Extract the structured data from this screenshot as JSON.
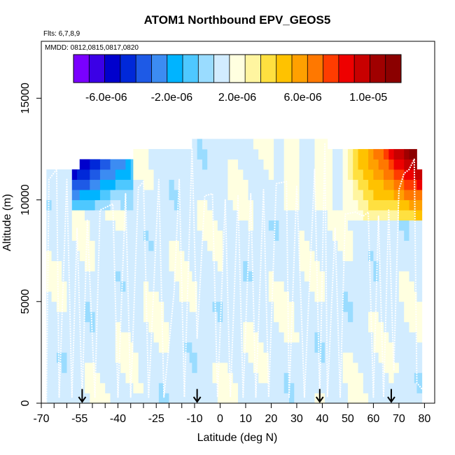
{
  "chart_data": {
    "type": "heatmap",
    "title": "ATOM1 Northbound EPV_GEOS5",
    "subtitle_flights": "Flts: 6,7,8,9",
    "subtitle_dates": "MMDD: 0812,0815,0817,0820",
    "xlabel": "Latitude (deg N)",
    "ylabel": "Altitude (m)",
    "xlim": [
      -70,
      84
    ],
    "ylim": [
      0,
      17800
    ],
    "xticks": [
      -70,
      -55,
      -40,
      -25,
      -10,
      0,
      10,
      20,
      30,
      40,
      50,
      60,
      70,
      80
    ],
    "xtick_labels": [
      "-70",
      "-55",
      "-40",
      "-25",
      "-10",
      "0",
      "10",
      "20",
      "30",
      "40",
      "50",
      "60",
      "70",
      "80"
    ],
    "yticks": [
      0,
      5000,
      10000,
      15000
    ],
    "ytick_labels": [
      "0",
      "5000",
      "10000",
      "15000"
    ],
    "colorbar": {
      "range": [
        -8e-06,
        1.2e-05
      ],
      "colors": [
        "#7a00ff",
        "#3b00e6",
        "#0000cc",
        "#0028d9",
        "#1e5ae6",
        "#3c8cf2",
        "#00b4ff",
        "#4ec8ff",
        "#9adcff",
        "#d2ecff",
        "#ffffe0",
        "#fff5a0",
        "#ffe040",
        "#ffc200",
        "#ffa000",
        "#ff7800",
        "#ff3c00",
        "#ee0000",
        "#c80000",
        "#a00000",
        "#8b0000"
      ],
      "ticks": [
        -6e-06,
        -2e-06,
        2e-06,
        6e-06,
        1e-05
      ],
      "tick_labels": [
        "-6.0e-06",
        "-2.0e-06",
        "2.0e-06",
        "6.0e-06",
        "1.0e-05"
      ]
    },
    "arrows_lat": [
      -54,
      -9,
      39,
      67
    ],
    "top_segments": [
      {
        "lat0": -68,
        "lat1": -55,
        "alt_top": 11500
      },
      {
        "lat0": -55,
        "lat1": -34,
        "alt_top": 12000
      },
      {
        "lat0": -34,
        "lat1": -11,
        "alt_top": 12500
      },
      {
        "lat0": -11,
        "lat1": 42,
        "alt_top": 13000
      },
      {
        "lat0": 42,
        "lat1": 77,
        "alt_top": 12500
      },
      {
        "lat0": 77,
        "lat1": 79,
        "alt_top": 11500
      }
    ],
    "neg_region": {
      "lat0": -57,
      "lat1": -34,
      "alt_low": 9300,
      "alt_high": 12000,
      "value_min": -7e-06
    },
    "pos_region": {
      "lat0": 47,
      "lat1": 79,
      "alt_low": 9200,
      "alt_high": 12500,
      "value_max": 1.15e-05
    },
    "background_value": 1.2e-06,
    "flight_track_samples": [
      {
        "lat": -68,
        "alt": 0
      },
      {
        "lat": -67,
        "alt": 11000
      },
      {
        "lat": -64,
        "alt": 11500
      },
      {
        "lat": -63,
        "alt": 300
      },
      {
        "lat": -60,
        "alt": 11000
      },
      {
        "lat": -58,
        "alt": 300
      },
      {
        "lat": -56,
        "alt": 8600
      },
      {
        "lat": -54,
        "alt": 300
      },
      {
        "lat": -52,
        "alt": 9000
      },
      {
        "lat": -49,
        "alt": 300
      },
      {
        "lat": -47,
        "alt": 9500
      },
      {
        "lat": -42,
        "alt": 9800
      },
      {
        "lat": -40,
        "alt": 300
      },
      {
        "lat": -37,
        "alt": 10300
      },
      {
        "lat": -35,
        "alt": 300
      },
      {
        "lat": -32,
        "alt": 10600
      },
      {
        "lat": -30,
        "alt": 10900
      },
      {
        "lat": -28,
        "alt": 300
      },
      {
        "lat": -24,
        "alt": 11000
      },
      {
        "lat": -22,
        "alt": 300
      },
      {
        "lat": -18,
        "alt": 5500
      },
      {
        "lat": -16,
        "alt": 11000
      },
      {
        "lat": -14,
        "alt": 300
      },
      {
        "lat": -11,
        "alt": 12500
      },
      {
        "lat": -9,
        "alt": 3200
      },
      {
        "lat": -6,
        "alt": 10200
      },
      {
        "lat": -3,
        "alt": 10300
      },
      {
        "lat": -1,
        "alt": 300
      },
      {
        "lat": 2,
        "alt": 10000
      },
      {
        "lat": 4,
        "alt": 300
      },
      {
        "lat": 7,
        "alt": 10200
      },
      {
        "lat": 9,
        "alt": 300
      },
      {
        "lat": 12,
        "alt": 10300
      },
      {
        "lat": 14,
        "alt": 300
      },
      {
        "lat": 17,
        "alt": 10500
      },
      {
        "lat": 19,
        "alt": 300
      },
      {
        "lat": 22,
        "alt": 10800
      },
      {
        "lat": 26,
        "alt": 10900
      },
      {
        "lat": 27,
        "alt": 300
      },
      {
        "lat": 30,
        "alt": 10700
      },
      {
        "lat": 33,
        "alt": 300
      },
      {
        "lat": 37,
        "alt": 11500
      },
      {
        "lat": 39,
        "alt": 300
      },
      {
        "lat": 41,
        "alt": 12800
      },
      {
        "lat": 42,
        "alt": 300
      },
      {
        "lat": 45,
        "alt": 8600
      },
      {
        "lat": 47,
        "alt": 300
      },
      {
        "lat": 49,
        "alt": 9300
      },
      {
        "lat": 53,
        "alt": 9400
      },
      {
        "lat": 56,
        "alt": 9200
      },
      {
        "lat": 58,
        "alt": 9400
      },
      {
        "lat": 60,
        "alt": 300
      },
      {
        "lat": 62,
        "alt": 9200
      },
      {
        "lat": 64,
        "alt": 300
      },
      {
        "lat": 66,
        "alt": 9500
      },
      {
        "lat": 68,
        "alt": 1600
      },
      {
        "lat": 70,
        "alt": 10500
      },
      {
        "lat": 72,
        "alt": 11300
      },
      {
        "lat": 74,
        "alt": 11500
      },
      {
        "lat": 76,
        "alt": 12000
      },
      {
        "lat": 77,
        "alt": 1000
      },
      {
        "lat": 79,
        "alt": 700
      }
    ]
  }
}
